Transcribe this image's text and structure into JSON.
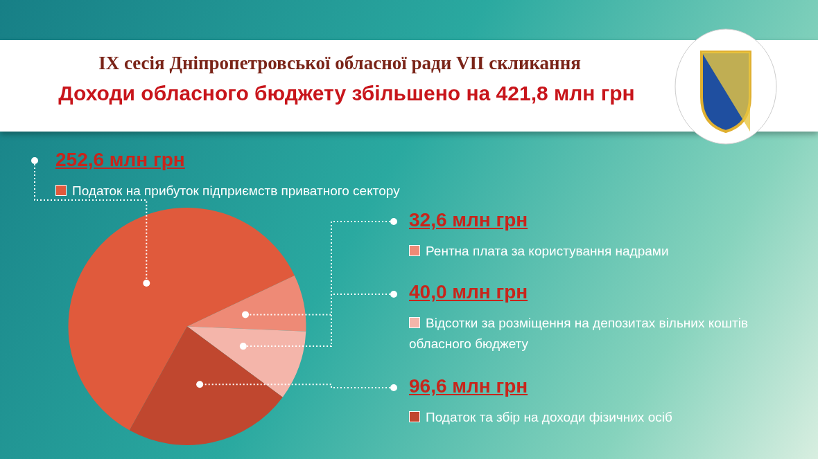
{
  "chart_data": {
    "type": "pie",
    "title": "IX сесія Дніпропетровської обласної ради VII скликання",
    "subtitle": "Доходи обласного бюджету збільшено на 421,8 млн грн",
    "categories": [
      "Податок на прибуток підприємств приватного сектору",
      "Рентна плата за користування надрами",
      "Відсотки за розміщення на депозитах вільних коштів обласного бюджету",
      "Податок та збір на доходи фізичних осіб"
    ],
    "values": [
      252.6,
      32.6,
      40.0,
      96.6
    ],
    "legend": "right",
    "colors": [
      "#e05a3c",
      "#ee8a76",
      "#f4b5aa",
      "#c0472f"
    ],
    "value_labels": [
      "252,6 млн грн",
      "32,6 млн грн",
      "40,0 млн грн",
      "96,6 млн грн"
    ]
  }
}
